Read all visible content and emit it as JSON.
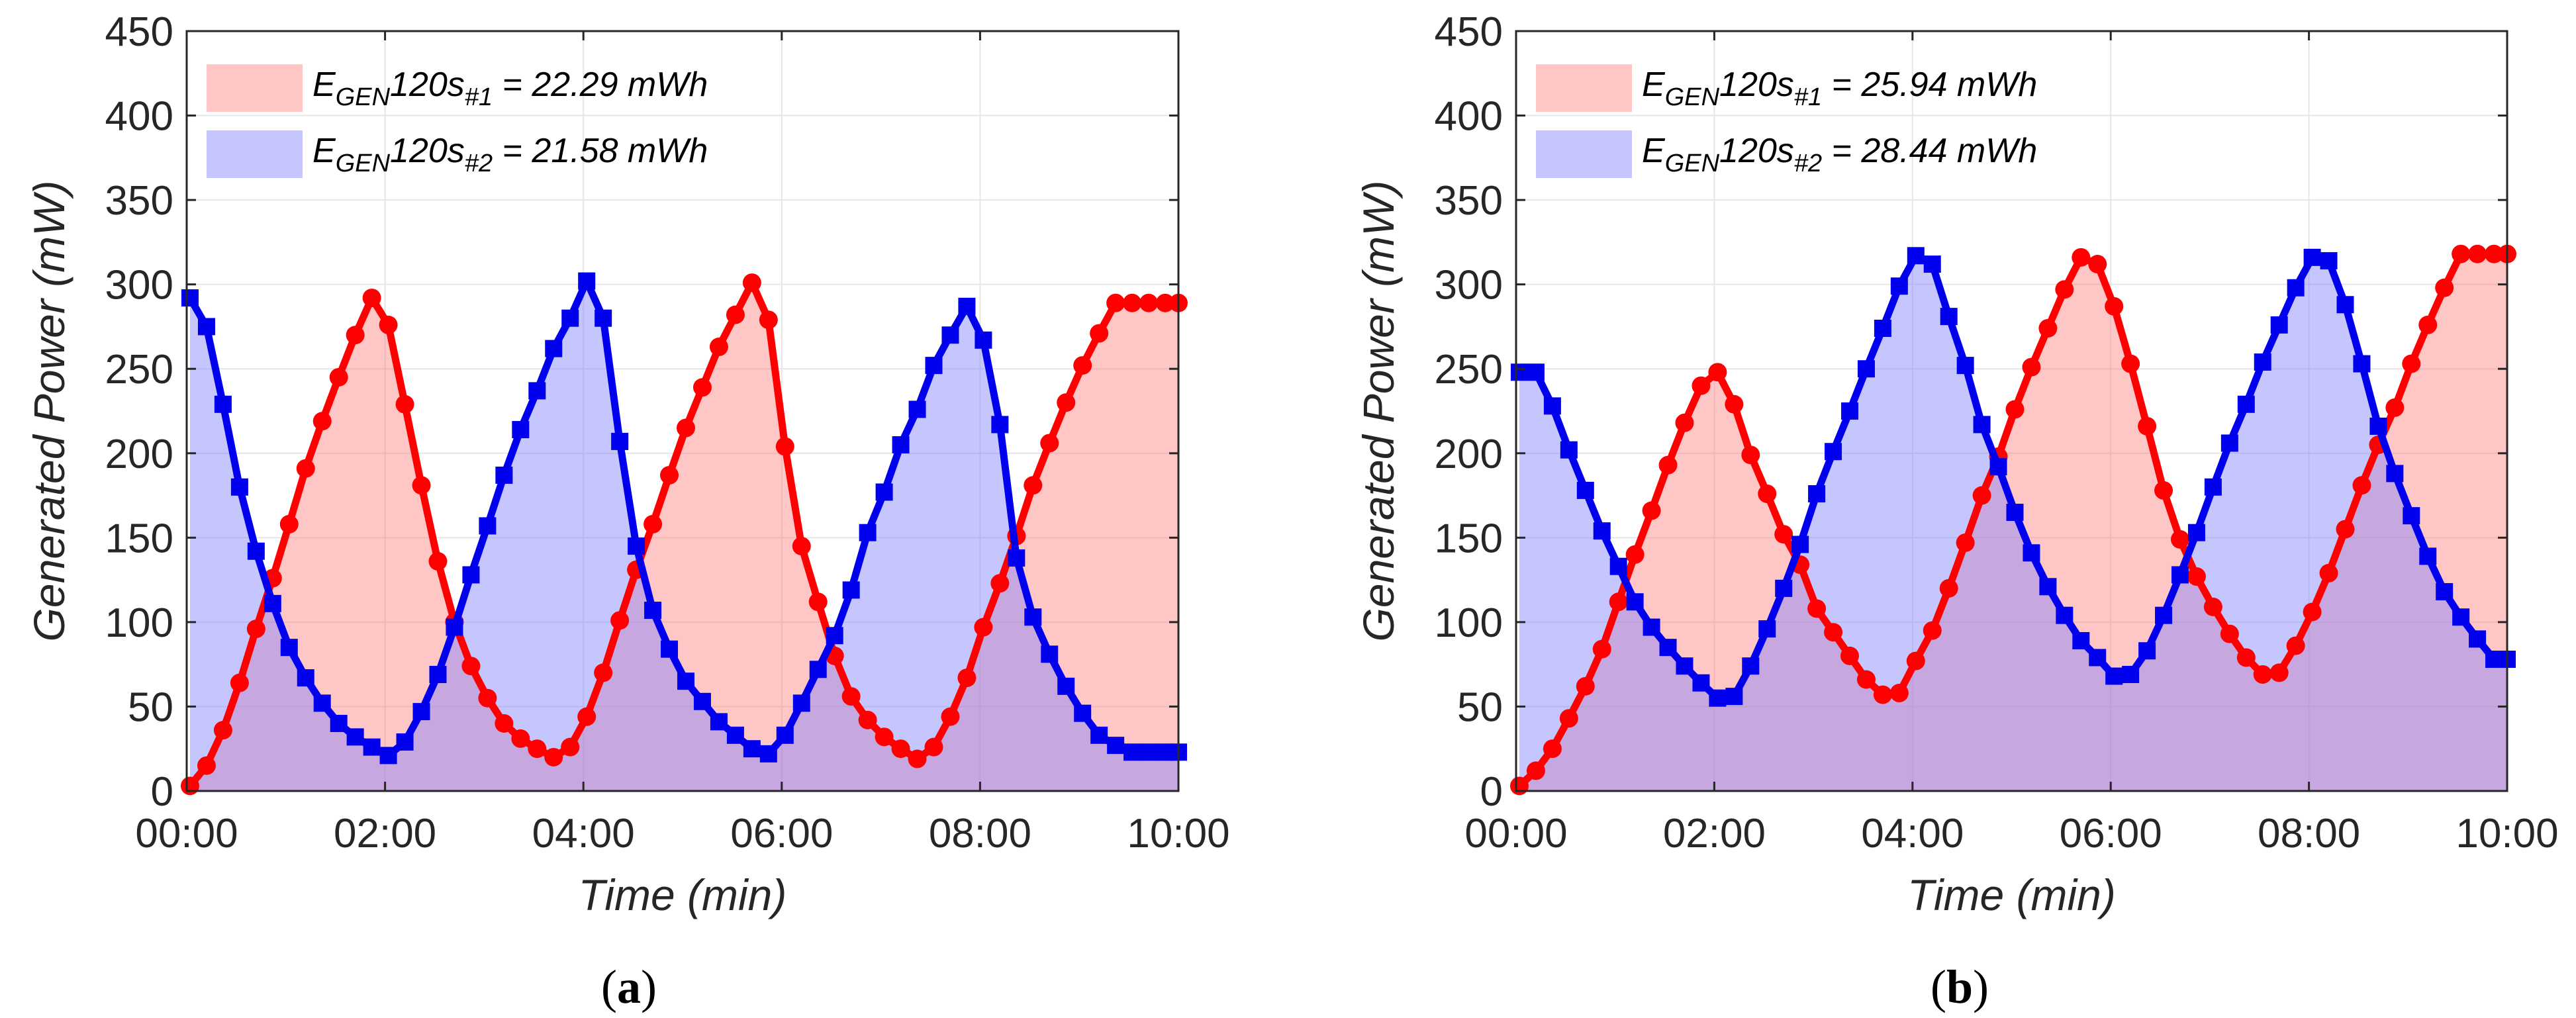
{
  "figure": {
    "colors": {
      "series1_line": "#ff0000",
      "series1_fill": "#ff8080",
      "series2_line": "#0000ee",
      "series2_fill": "#8080ff",
      "grid": "#e6e6e6",
      "axis": "#262626"
    }
  },
  "chart_data": [
    {
      "type": "area",
      "panel_label": "a",
      "xlabel": "Time (min)",
      "ylabel": "Generated Power (mW)",
      "ylim": [
        0,
        450
      ],
      "yticks": [
        0,
        50,
        100,
        150,
        200,
        250,
        300,
        350,
        400,
        450
      ],
      "xlim": [
        0,
        600
      ],
      "xticks": [
        0,
        120,
        240,
        360,
        480,
        600
      ],
      "xtick_labels": [
        "00:00",
        "02:00",
        "04:00",
        "06:00",
        "08:00",
        "10:00"
      ],
      "grid": true,
      "legend": [
        {
          "prefix": "E",
          "sub": "GEN",
          "mid": "120s",
          "sub2": "#1",
          "suffix": " = 22.29 mWh"
        },
        {
          "prefix": "E",
          "sub": "GEN",
          "mid": "120s",
          "sub2": "#2",
          "suffix": " = 21.58 mWh"
        }
      ],
      "series": [
        {
          "name": "#1",
          "marker": "circle",
          "x": [
            2,
            12,
            22,
            32,
            42,
            52,
            62,
            72,
            82,
            92,
            102,
            112,
            122,
            132,
            142,
            152,
            162,
            172,
            182,
            192,
            202,
            212,
            222,
            232,
            242,
            252,
            262,
            272,
            282,
            292,
            302,
            312,
            322,
            332,
            342,
            352,
            362,
            372,
            382,
            392,
            402,
            412,
            422,
            432,
            442,
            452,
            462,
            472,
            482,
            492,
            502,
            512,
            522,
            532,
            542,
            552,
            562,
            572,
            582,
            592,
            602
          ],
          "y": [
            3,
            15,
            36,
            64,
            96,
            126,
            158,
            191,
            219,
            245,
            270,
            292,
            276,
            229,
            181,
            136,
            100,
            74,
            55,
            40,
            31,
            25,
            20,
            26,
            44,
            70,
            101,
            131,
            158,
            187,
            215,
            239,
            263,
            282,
            301,
            279,
            204,
            145,
            112,
            80,
            56,
            42,
            32,
            25,
            19,
            26,
            44,
            67,
            97,
            123,
            151,
            181,
            206,
            230,
            252,
            271,
            289,
            289,
            289,
            289,
            289
          ]
        },
        {
          "name": "#2",
          "marker": "square",
          "x": [
            2,
            12,
            22,
            32,
            42,
            52,
            62,
            72,
            82,
            92,
            102,
            112,
            122,
            132,
            142,
            152,
            162,
            172,
            182,
            192,
            202,
            212,
            222,
            232,
            242,
            252,
            262,
            272,
            282,
            292,
            302,
            312,
            322,
            332,
            342,
            352,
            362,
            372,
            382,
            392,
            402,
            412,
            422,
            432,
            442,
            452,
            462,
            472,
            482,
            492,
            502,
            512,
            522,
            532,
            542,
            552,
            562,
            572,
            582,
            592,
            602
          ],
          "y": [
            292,
            275,
            229,
            180,
            142,
            111,
            85,
            67,
            52,
            40,
            32,
            26,
            21,
            29,
            47,
            69,
            97,
            128,
            157,
            187,
            214,
            237,
            262,
            280,
            302,
            280,
            207,
            145,
            107,
            84,
            65,
            53,
            41,
            33,
            25,
            22,
            33,
            52,
            72,
            92,
            119,
            153,
            177,
            205,
            226,
            252,
            270,
            287,
            267,
            217,
            138,
            103,
            81,
            62,
            46,
            33,
            27,
            23,
            23,
            23,
            23
          ]
        }
      ]
    },
    {
      "type": "area",
      "panel_label": "b",
      "xlabel": "Time (min)",
      "ylabel": "Generated Power (mW)",
      "ylim": [
        0,
        450
      ],
      "yticks": [
        0,
        50,
        100,
        150,
        200,
        250,
        300,
        350,
        400,
        450
      ],
      "xlim": [
        0,
        600
      ],
      "xticks": [
        0,
        120,
        240,
        360,
        480,
        600
      ],
      "xtick_labels": [
        "00:00",
        "02:00",
        "04:00",
        "06:00",
        "08:00",
        "10:00"
      ],
      "grid": true,
      "legend": [
        {
          "prefix": "E",
          "sub": "GEN",
          "mid": "120s",
          "sub2": "#1",
          "suffix": " = 25.94 mWh"
        },
        {
          "prefix": "E",
          "sub": "GEN",
          "mid": "120s",
          "sub2": "#2",
          "suffix": " = 28.44 mWh"
        }
      ],
      "series": [
        {
          "name": "#1",
          "marker": "circle",
          "x": [
            2,
            12,
            22,
            32,
            42,
            52,
            62,
            72,
            82,
            92,
            102,
            112,
            122,
            132,
            142,
            152,
            162,
            172,
            182,
            192,
            202,
            212,
            222,
            232,
            242,
            252,
            262,
            272,
            282,
            292,
            302,
            312,
            322,
            332,
            342,
            352,
            362,
            372,
            382,
            392,
            402,
            412,
            422,
            432,
            442,
            452,
            462,
            472,
            482,
            492,
            502,
            512,
            522,
            532,
            542,
            552,
            562,
            572,
            582,
            592,
            600
          ],
          "y": [
            3,
            12,
            25,
            43,
            62,
            84,
            112,
            140,
            166,
            193,
            218,
            240,
            248,
            229,
            199,
            176,
            152,
            134,
            108,
            94,
            80,
            66,
            57,
            58,
            77,
            95,
            120,
            147,
            175,
            198,
            226,
            251,
            274,
            297,
            316,
            312,
            287,
            253,
            216,
            178,
            149,
            127,
            109,
            93,
            79,
            69,
            70,
            86,
            106,
            129,
            155,
            181,
            205,
            227,
            253,
            276,
            298,
            318,
            318,
            318,
            318
          ]
        },
        {
          "name": "#2",
          "marker": "square",
          "x": [
            2,
            12,
            22,
            32,
            42,
            52,
            62,
            72,
            82,
            92,
            102,
            112,
            122,
            132,
            142,
            152,
            162,
            172,
            182,
            192,
            202,
            212,
            222,
            232,
            242,
            252,
            262,
            272,
            282,
            292,
            302,
            312,
            322,
            332,
            342,
            352,
            362,
            372,
            382,
            392,
            402,
            412,
            422,
            432,
            442,
            452,
            462,
            472,
            482,
            492,
            502,
            512,
            522,
            532,
            542,
            552,
            562,
            572,
            582,
            592,
            600
          ],
          "y": [
            248,
            248,
            228,
            202,
            178,
            154,
            133,
            112,
            97,
            85,
            74,
            64,
            55,
            56,
            74,
            96,
            120,
            146,
            176,
            201,
            225,
            250,
            274,
            299,
            317,
            312,
            281,
            252,
            217,
            192,
            165,
            141,
            121,
            104,
            89,
            79,
            68,
            69,
            83,
            104,
            128,
            153,
            180,
            206,
            229,
            254,
            276,
            298,
            316,
            314,
            288,
            253,
            216,
            188,
            163,
            139,
            118,
            103,
            90,
            78,
            78
          ]
        }
      ]
    }
  ]
}
